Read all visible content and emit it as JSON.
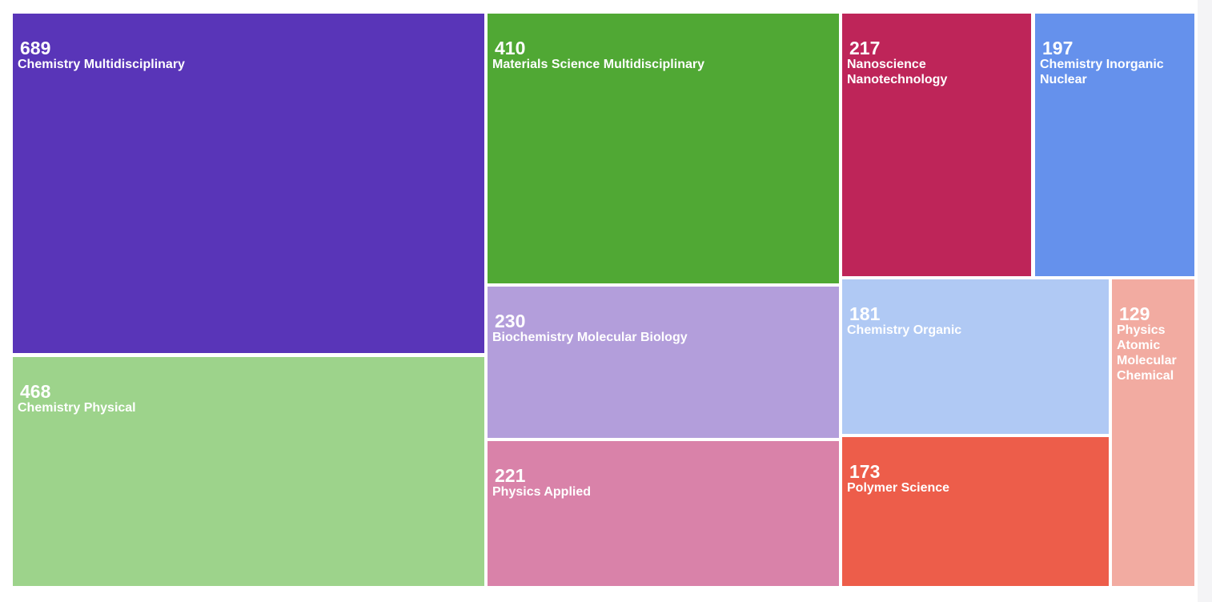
{
  "chart_data": {
    "type": "treemap",
    "title": "",
    "items": [
      {
        "value": 689,
        "label": "Chemistry Multidisciplinary",
        "color": "#5935b8"
      },
      {
        "value": 468,
        "label": "Chemistry Physical",
        "color": "#9dd38b"
      },
      {
        "value": 410,
        "label": "Materials Science Multidisciplinary",
        "color": "#50a834"
      },
      {
        "value": 230,
        "label": "Biochemistry Molecular Biology",
        "color": "#b39edb"
      },
      {
        "value": 221,
        "label": "Physics Applied",
        "color": "#d982a9"
      },
      {
        "value": 217,
        "label": "Nanoscience Nanotechnology",
        "color": "#be2559"
      },
      {
        "value": 197,
        "label": "Chemistry Inorganic Nuclear",
        "color": "#6591ec"
      },
      {
        "value": 181,
        "label": "Chemistry Organic",
        "color": "#b0c9f4"
      },
      {
        "value": 173,
        "label": "Polymer Science",
        "color": "#ed5d4a"
      },
      {
        "value": 129,
        "label": "Physics Atomic Molecular Chemical",
        "color": "#f2aba1"
      }
    ]
  }
}
